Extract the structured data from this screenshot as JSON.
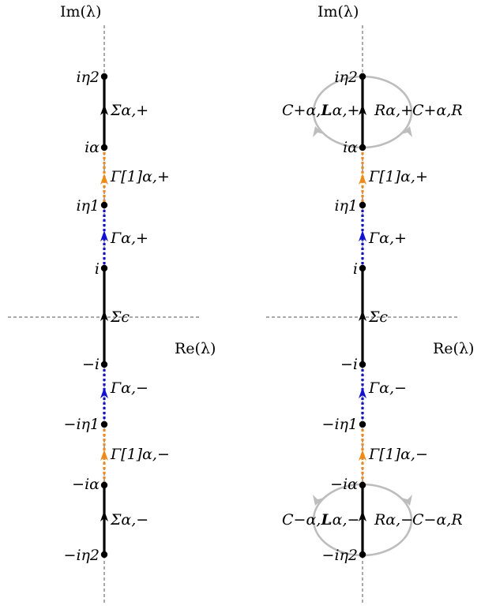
{
  "axes": {
    "im_label": "Im(λ)",
    "re_label": "Re(λ)"
  },
  "colors": {
    "solid_contour": "#000000",
    "gamma_blue": "#1010d8",
    "gamma_orange": "#f08a16",
    "loop_gray": "#bdbdbd",
    "axis_dash": "#555555"
  },
  "points": {
    "i_eta2": "iη2",
    "i_alpha": "iα",
    "i_eta1": "iη1",
    "i": "i",
    "neg_i": "−i",
    "neg_i_eta1": "−iη1",
    "neg_i_alpha": "−iα",
    "neg_i_eta2": "−iη2"
  },
  "contours": {
    "sigma_alpha_plus": "Σα,+",
    "gamma1_alpha_plus": "Γ[1]α,+",
    "gamma_alpha_plus": "Γα,+",
    "sigma_c": "Σc",
    "gamma_alpha_minus": "Γα,−",
    "gamma1_alpha_minus": "Γ[1]α,−",
    "sigma_alpha_minus": "Σα,−"
  },
  "regions": {
    "c_plus_L": "C+α,L",
    "L_plus": "Lα,+",
    "R_plus": "Rα,+",
    "c_plus_R": "C+α,R",
    "c_minus_L": "C−α,L",
    "L_minus": "Lα,−",
    "R_minus": "Rα,−",
    "c_minus_R": "C−α,R"
  }
}
